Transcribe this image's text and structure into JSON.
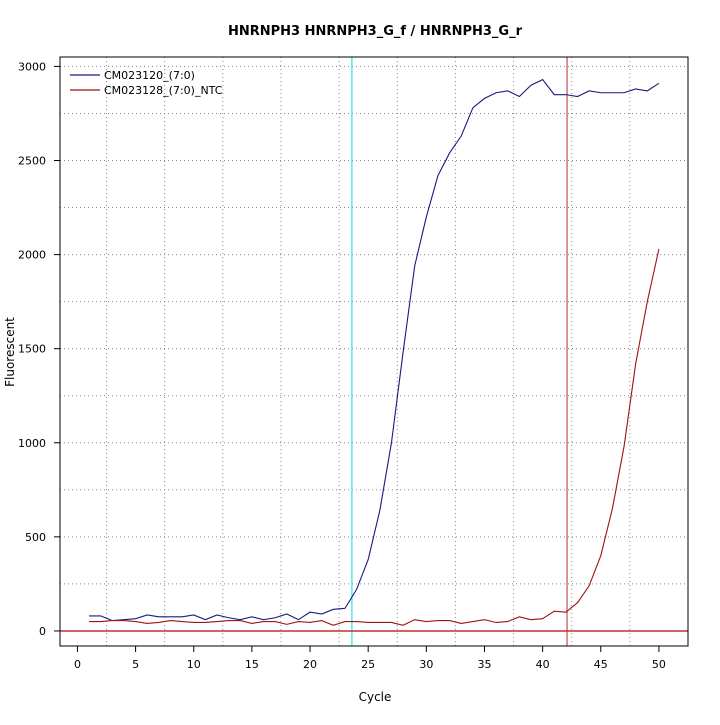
{
  "chart_data": {
    "type": "line",
    "title": "HNRNPH3  HNRNPH3_G_f / HNRNPH3_G_r",
    "xlabel": "Cycle",
    "ylabel": "Fluorescent",
    "xlim": [
      -1.5,
      52.5
    ],
    "ylim": [
      -80,
      3050
    ],
    "x_ticks": [
      0,
      5,
      10,
      15,
      20,
      25,
      30,
      35,
      40,
      45,
      50
    ],
    "y_ticks": [
      0,
      500,
      1000,
      1500,
      2000,
      2500,
      3000
    ],
    "x_ticks_label": [
      "0",
      "5",
      "10",
      "15",
      "20",
      "25",
      "30",
      "35",
      "40",
      "45",
      "50"
    ],
    "y_ticks_label": [
      "0",
      "500",
      "1000",
      "1500",
      "2000",
      "2500",
      "3000"
    ],
    "x_grid": [
      2.5,
      7.5,
      12.5,
      17.5,
      22.5,
      27.5,
      32.5,
      37.5,
      42.5,
      47.5
    ],
    "y_grid": [
      250,
      500,
      750,
      1000,
      1250,
      1500,
      1750,
      2000,
      2250,
      2500,
      2750,
      3000
    ],
    "grid": true,
    "legend_position": "top-left",
    "baseline": 0,
    "baseline_color": "#c03030",
    "vlines": [
      {
        "x": 23.6,
        "color": "#33ddee"
      },
      {
        "x": 42.1,
        "color": "#c05050"
      }
    ],
    "series": [
      {
        "name": "CM023120_(7:0)",
        "color": "#1a1a80",
        "x": [
          1,
          2,
          3,
          4,
          5,
          6,
          7,
          8,
          9,
          10,
          11,
          12,
          13,
          14,
          15,
          16,
          17,
          18,
          19,
          20,
          21,
          22,
          23,
          24,
          25,
          26,
          27,
          28,
          29,
          30,
          31,
          32,
          33,
          34,
          35,
          36,
          37,
          38,
          39,
          40,
          41,
          42,
          43,
          44,
          45,
          46,
          47,
          48,
          49,
          50
        ],
        "values": [
          80,
          80,
          55,
          60,
          65,
          85,
          75,
          75,
          75,
          85,
          60,
          85,
          70,
          60,
          75,
          60,
          70,
          90,
          60,
          100,
          90,
          115,
          120,
          220,
          380,
          640,
          1000,
          1480,
          1940,
          2200,
          2420,
          2540,
          2630,
          2780,
          2830,
          2860,
          2870,
          2840,
          2900,
          2930,
          2850,
          2850,
          2840,
          2870,
          2860,
          2860,
          2860,
          2880,
          2870,
          2910
        ]
      },
      {
        "name": "CM023128_(7:0)_NTC",
        "color": "#a01010",
        "x": [
          1,
          2,
          3,
          4,
          5,
          6,
          7,
          8,
          9,
          10,
          11,
          12,
          13,
          14,
          15,
          16,
          17,
          18,
          19,
          20,
          21,
          22,
          23,
          24,
          25,
          26,
          27,
          28,
          29,
          30,
          31,
          32,
          33,
          34,
          35,
          36,
          37,
          38,
          39,
          40,
          41,
          42,
          43,
          44,
          45,
          46,
          47,
          48,
          49,
          50
        ],
        "values": [
          50,
          50,
          55,
          55,
          50,
          40,
          45,
          55,
          50,
          45,
          45,
          50,
          55,
          55,
          40,
          50,
          50,
          35,
          50,
          45,
          55,
          30,
          50,
          50,
          45,
          45,
          45,
          30,
          60,
          50,
          55,
          55,
          40,
          50,
          60,
          45,
          50,
          75,
          60,
          65,
          105,
          100,
          150,
          240,
          400,
          650,
          980,
          1420,
          1750,
          2030
        ]
      }
    ]
  }
}
